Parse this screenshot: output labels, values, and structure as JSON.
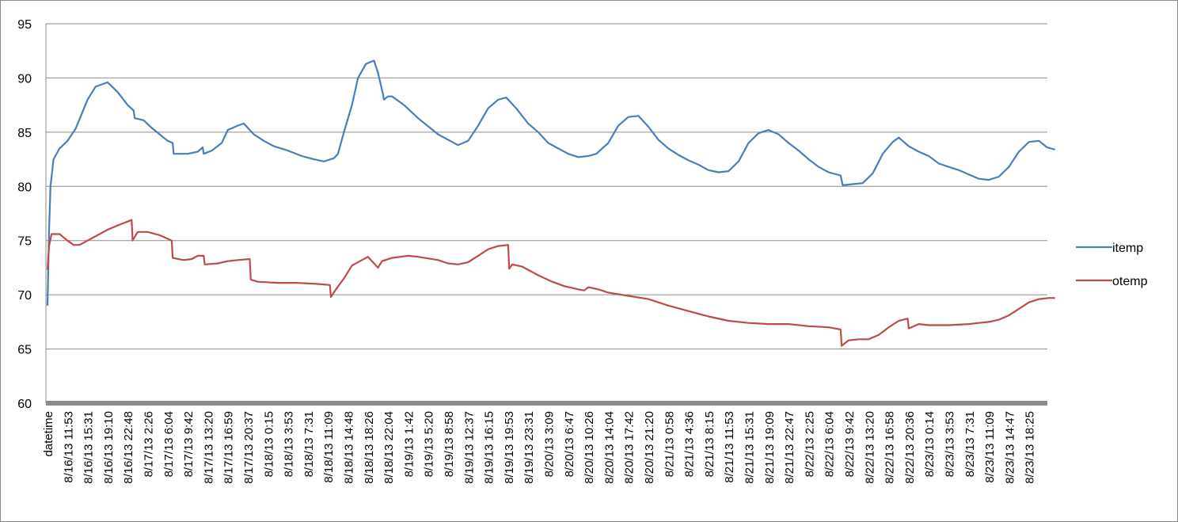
{
  "chart_data": {
    "type": "line",
    "title": "",
    "xlabel": "",
    "ylabel": "",
    "ylim": [
      60,
      95
    ],
    "yticks": [
      60,
      65,
      70,
      75,
      80,
      85,
      90,
      95
    ],
    "grid": "horizontal",
    "legend_position": "right",
    "x_tick_labels": [
      "datetime",
      "8/16/13 11:53",
      "8/16/13 15:31",
      "8/16/13 19:10",
      "8/16/13 22:48",
      "8/17/13 2:26",
      "8/17/13 6:04",
      "8/17/13 9:42",
      "8/17/13 13:20",
      "8/17/13 16:59",
      "8/17/13 20:37",
      "8/18/13 0:15",
      "8/18/13 3:53",
      "8/18/13 7:31",
      "8/18/13 11:09",
      "8/18/13 14:48",
      "8/18/13 18:26",
      "8/18/13 22:04",
      "8/19/13 1:42",
      "8/19/13 5:20",
      "8/19/13 8:58",
      "8/19/13 12:37",
      "8/19/13 16:15",
      "8/19/13 19:53",
      "8/19/13 23:31",
      "8/20/13 3:09",
      "8/20/13 6:47",
      "8/20/13 10:26",
      "8/20/13 14:04",
      "8/20/13 17:42",
      "8/20/13 21:20",
      "8/21/13 0:58",
      "8/21/13 4:36",
      "8/21/13 8:15",
      "8/21/13 11:53",
      "8/21/13 15:31",
      "8/21/13 19:09",
      "8/21/13 22:47",
      "8/22/13 2:25",
      "8/22/13 6:04",
      "8/22/13 9:42",
      "8/22/13 13:20",
      "8/22/13 16:58",
      "8/22/13 20:36",
      "8/23/13 0:14",
      "8/23/13 3:53",
      "8/23/13 7:31",
      "8/23/13 11:09",
      "8/23/13 14:47",
      "8/23/13 18:25"
    ],
    "series": [
      {
        "name": "itemp",
        "color": "#4a7ebb",
        "points": [
          [
            0,
            69
          ],
          [
            0.08,
            76
          ],
          [
            0.15,
            80
          ],
          [
            0.3,
            82.5
          ],
          [
            0.6,
            83.5
          ],
          [
            1,
            84.2
          ],
          [
            1.4,
            85.3
          ],
          [
            2,
            88
          ],
          [
            2.4,
            89.2
          ],
          [
            3,
            89.6
          ],
          [
            3.5,
            88.7
          ],
          [
            4,
            87.5
          ],
          [
            4.3,
            87
          ],
          [
            4.35,
            86.3
          ],
          [
            4.8,
            86.1
          ],
          [
            5.2,
            85.4
          ],
          [
            5.6,
            84.8
          ],
          [
            6,
            84.2
          ],
          [
            6.25,
            84
          ],
          [
            6.3,
            83
          ],
          [
            7,
            83
          ],
          [
            7.5,
            83.2
          ],
          [
            7.75,
            83.6
          ],
          [
            7.8,
            83
          ],
          [
            8.2,
            83.3
          ],
          [
            8.7,
            84
          ],
          [
            9,
            85.2
          ],
          [
            9.5,
            85.6
          ],
          [
            9.8,
            85.8
          ],
          [
            10.3,
            84.8
          ],
          [
            10.8,
            84.2
          ],
          [
            11.3,
            83.7
          ],
          [
            12,
            83.3
          ],
          [
            12.7,
            82.8
          ],
          [
            13.3,
            82.5
          ],
          [
            13.8,
            82.3
          ],
          [
            14.3,
            82.6
          ],
          [
            14.5,
            83
          ],
          [
            14.8,
            85
          ],
          [
            15.2,
            87.5
          ],
          [
            15.5,
            90
          ],
          [
            15.9,
            91.3
          ],
          [
            16.3,
            91.6
          ],
          [
            16.5,
            90.5
          ],
          [
            16.75,
            88.5
          ],
          [
            16.8,
            88
          ],
          [
            17,
            88.3
          ],
          [
            17.2,
            88.3
          ],
          [
            17.8,
            87.5
          ],
          [
            18.5,
            86.3
          ],
          [
            19.5,
            84.8
          ],
          [
            20.2,
            84.1
          ],
          [
            20.5,
            83.8
          ],
          [
            21,
            84.2
          ],
          [
            21.5,
            85.6
          ],
          [
            22,
            87.2
          ],
          [
            22.5,
            88
          ],
          [
            22.9,
            88.2
          ],
          [
            23.4,
            87.2
          ],
          [
            24,
            85.8
          ],
          [
            24.5,
            85
          ],
          [
            25,
            84
          ],
          [
            25.5,
            83.5
          ],
          [
            26,
            83
          ],
          [
            26.5,
            82.7
          ],
          [
            27,
            82.8
          ],
          [
            27.4,
            83
          ],
          [
            28,
            84
          ],
          [
            28.5,
            85.6
          ],
          [
            29,
            86.4
          ],
          [
            29.5,
            86.5
          ],
          [
            30,
            85.5
          ],
          [
            30.5,
            84.3
          ],
          [
            31,
            83.5
          ],
          [
            31.5,
            82.9
          ],
          [
            32,
            82.4
          ],
          [
            32.5,
            82
          ],
          [
            33,
            81.5
          ],
          [
            33.5,
            81.3
          ],
          [
            34,
            81.4
          ],
          [
            34.5,
            82.3
          ],
          [
            35,
            84
          ],
          [
            35.5,
            84.9
          ],
          [
            36,
            85.2
          ],
          [
            36.5,
            84.8
          ],
          [
            37,
            84
          ],
          [
            37.5,
            83.3
          ],
          [
            38,
            82.5
          ],
          [
            38.5,
            81.8
          ],
          [
            39,
            81.3
          ],
          [
            39.6,
            81
          ],
          [
            39.7,
            80.1
          ],
          [
            40.2,
            80.2
          ],
          [
            40.7,
            80.3
          ],
          [
            41.2,
            81.2
          ],
          [
            41.7,
            83
          ],
          [
            42.2,
            84.1
          ],
          [
            42.5,
            84.5
          ],
          [
            43,
            83.7
          ],
          [
            43.5,
            83.2
          ],
          [
            44,
            82.8
          ],
          [
            44.5,
            82.1
          ],
          [
            45,
            81.8
          ],
          [
            45.5,
            81.5
          ],
          [
            46,
            81.1
          ],
          [
            46.5,
            80.7
          ],
          [
            47,
            80.6
          ],
          [
            47.5,
            80.9
          ],
          [
            48,
            81.8
          ],
          [
            48.5,
            83.2
          ],
          [
            49,
            84.1
          ],
          [
            49.5,
            84.2
          ],
          [
            49.9,
            83.6
          ],
          [
            50.3,
            83.4
          ]
        ]
      },
      {
        "name": "otemp",
        "color": "#be4b48",
        "points": [
          [
            0,
            72.3
          ],
          [
            0.08,
            74.5
          ],
          [
            0.2,
            75.6
          ],
          [
            0.6,
            75.6
          ],
          [
            1,
            75
          ],
          [
            1.3,
            74.6
          ],
          [
            1.6,
            74.6
          ],
          [
            2,
            75
          ],
          [
            2.5,
            75.5
          ],
          [
            3,
            76
          ],
          [
            3.5,
            76.4
          ],
          [
            4.2,
            76.9
          ],
          [
            4.25,
            75
          ],
          [
            4.5,
            75.8
          ],
          [
            5,
            75.8
          ],
          [
            5.6,
            75.5
          ],
          [
            6.2,
            75
          ],
          [
            6.25,
            73.4
          ],
          [
            6.8,
            73.2
          ],
          [
            7.2,
            73.3
          ],
          [
            7.5,
            73.6
          ],
          [
            7.8,
            73.6
          ],
          [
            7.85,
            72.8
          ],
          [
            8.5,
            72.9
          ],
          [
            9,
            73.1
          ],
          [
            9.5,
            73.2
          ],
          [
            10.1,
            73.3
          ],
          [
            10.15,
            71.4
          ],
          [
            10.5,
            71.2
          ],
          [
            11.5,
            71.1
          ],
          [
            12.5,
            71.1
          ],
          [
            13.5,
            71
          ],
          [
            14.1,
            70.9
          ],
          [
            14.15,
            69.8
          ],
          [
            14.4,
            70.5
          ],
          [
            14.8,
            71.5
          ],
          [
            15.2,
            72.7
          ],
          [
            15.7,
            73.2
          ],
          [
            16,
            73.5
          ],
          [
            16.5,
            72.5
          ],
          [
            16.7,
            73.1
          ],
          [
            17.2,
            73.4
          ],
          [
            18,
            73.6
          ],
          [
            18.5,
            73.5
          ],
          [
            19.5,
            73.2
          ],
          [
            20,
            72.9
          ],
          [
            20.5,
            72.8
          ],
          [
            21,
            73
          ],
          [
            21.5,
            73.6
          ],
          [
            22,
            74.2
          ],
          [
            22.5,
            74.5
          ],
          [
            23,
            74.6
          ],
          [
            23.05,
            72.4
          ],
          [
            23.2,
            72.8
          ],
          [
            23.7,
            72.6
          ],
          [
            24.5,
            71.8
          ],
          [
            25.2,
            71.2
          ],
          [
            25.8,
            70.8
          ],
          [
            26.5,
            70.5
          ],
          [
            26.8,
            70.4
          ],
          [
            27,
            70.7
          ],
          [
            27.5,
            70.5
          ],
          [
            28,
            70.2
          ],
          [
            29,
            69.9
          ],
          [
            30,
            69.6
          ],
          [
            31,
            69
          ],
          [
            32,
            68.5
          ],
          [
            33,
            68
          ],
          [
            34,
            67.6
          ],
          [
            35,
            67.4
          ],
          [
            36,
            67.3
          ],
          [
            37,
            67.3
          ],
          [
            38,
            67.1
          ],
          [
            39,
            67
          ],
          [
            39.6,
            66.8
          ],
          [
            39.65,
            65.3
          ],
          [
            40,
            65.8
          ],
          [
            40.5,
            65.9
          ],
          [
            41,
            65.9
          ],
          [
            41.5,
            66.3
          ],
          [
            42,
            67
          ],
          [
            42.5,
            67.6
          ],
          [
            42.95,
            67.8
          ],
          [
            43,
            66.9
          ],
          [
            43.5,
            67.3
          ],
          [
            44,
            67.2
          ],
          [
            45,
            67.2
          ],
          [
            46,
            67.3
          ],
          [
            46.5,
            67.4
          ],
          [
            47,
            67.5
          ],
          [
            47.5,
            67.7
          ],
          [
            48,
            68.1
          ],
          [
            48.5,
            68.7
          ],
          [
            49,
            69.3
          ],
          [
            49.5,
            69.6
          ],
          [
            50,
            69.7
          ],
          [
            50.3,
            69.7
          ]
        ]
      }
    ]
  }
}
